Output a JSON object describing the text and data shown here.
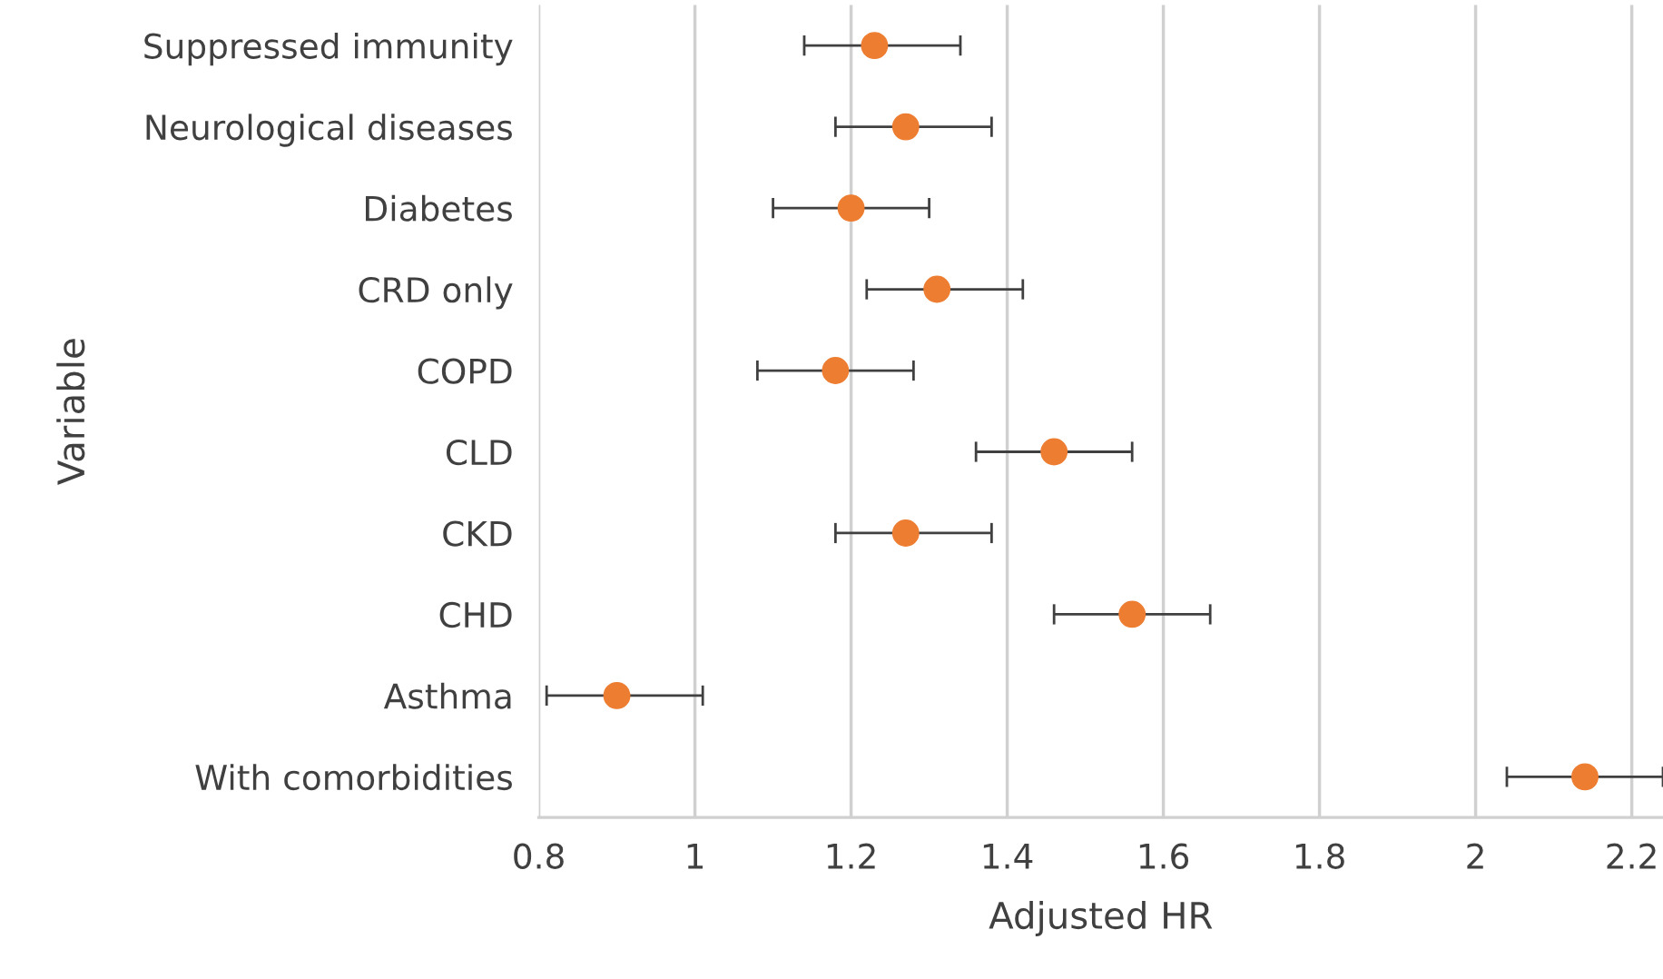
{
  "chart_data": {
    "type": "scatter",
    "orientation": "horizontal",
    "xlabel": "Adjusted HR",
    "ylabel": "Variable",
    "categories": [
      "Suppressed immunity",
      "Neurological diseases",
      "Diabetes",
      "CRD only",
      "COPD",
      "CLD",
      "CKD",
      "CHD",
      "Asthma",
      "With comorbidities"
    ],
    "values": [
      1.23,
      1.27,
      1.2,
      1.31,
      1.18,
      1.46,
      1.27,
      1.56,
      0.9,
      2.14
    ],
    "errors": [
      [
        1.14,
        1.34
      ],
      [
        1.18,
        1.38
      ],
      [
        1.1,
        1.3
      ],
      [
        1.22,
        1.42
      ],
      [
        1.08,
        1.28
      ],
      [
        1.36,
        1.56
      ],
      [
        1.18,
        1.38
      ],
      [
        1.46,
        1.66
      ],
      [
        0.81,
        1.01
      ],
      [
        2.04,
        2.24
      ]
    ],
    "color": "#ed7d31",
    "marker": "circle",
    "xlim": [
      0.8,
      2.24
    ],
    "xticks": [
      0.8,
      1,
      1.2,
      1.4,
      1.6,
      1.8,
      2,
      2.2
    ],
    "grid": "x",
    "legend": false
  }
}
